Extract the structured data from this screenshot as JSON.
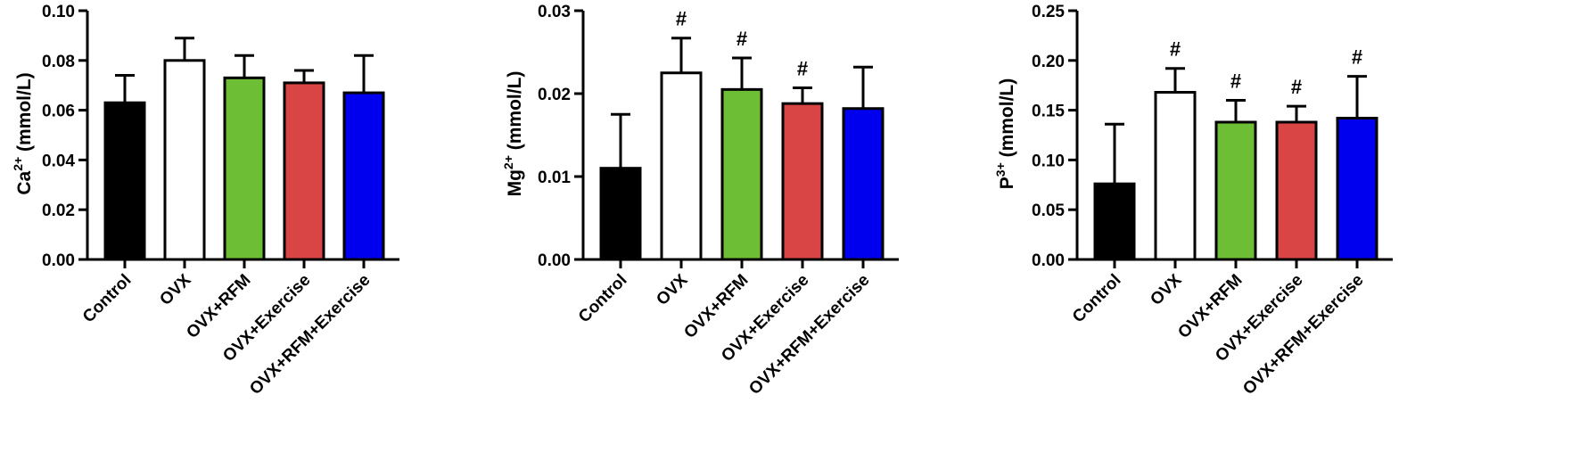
{
  "chart_data": [
    {
      "type": "bar",
      "categories": [
        "Control",
        "OVX",
        "OVX+RFM",
        "OVX+Exercise",
        "OVX+RFM+Exercise"
      ],
      "ylabel_main": "Ca",
      "ylabel_sup": "2+",
      "ylabel_unit": " (mmol/L)",
      "ylim": [
        0,
        0.1
      ],
      "yticks": [
        0.0,
        0.02,
        0.04,
        0.06,
        0.08,
        0.1
      ],
      "ytick_labels": [
        "0.00",
        "0.02",
        "0.04",
        "0.06",
        "0.08",
        "0.10"
      ],
      "values": [
        0.063,
        0.08,
        0.073,
        0.071,
        0.067
      ],
      "errors": [
        0.011,
        0.009,
        0.009,
        0.005,
        0.015
      ],
      "significance": [
        "",
        "",
        "",
        "",
        ""
      ],
      "colors": [
        "#000000",
        "#ffffff",
        "#6dbe35",
        "#d94545",
        "#0000ee"
      ]
    },
    {
      "type": "bar",
      "categories": [
        "Control",
        "OVX",
        "OVX+RFM",
        "OVX+Exercise",
        "OVX+RFM+Exercise"
      ],
      "ylabel_main": "Mg",
      "ylabel_sup": "2+",
      "ylabel_unit": " (mmol/L)",
      "ylim": [
        0,
        0.03
      ],
      "yticks": [
        0.0,
        0.01,
        0.02,
        0.03
      ],
      "ytick_labels": [
        "0.00",
        "0.01",
        "0.02",
        "0.03"
      ],
      "values": [
        0.011,
        0.0225,
        0.0205,
        0.0188,
        0.0182
      ],
      "errors": [
        0.0065,
        0.0042,
        0.0038,
        0.0019,
        0.005
      ],
      "significance": [
        "",
        "#",
        "#",
        "#",
        ""
      ],
      "colors": [
        "#000000",
        "#ffffff",
        "#6dbe35",
        "#d94545",
        "#0000ee"
      ]
    },
    {
      "type": "bar",
      "categories": [
        "Control",
        "OVX",
        "OVX+RFM",
        "OVX+Exercise",
        "OVX+RFM+Exercise"
      ],
      "ylabel_main": "P",
      "ylabel_sup": "3+",
      "ylabel_unit": " (mmol/L)",
      "ylim": [
        0,
        0.25
      ],
      "yticks": [
        0.0,
        0.05,
        0.1,
        0.15,
        0.2,
        0.25
      ],
      "ytick_labels": [
        "0.00",
        "0.05",
        "0.10",
        "0.15",
        "0.20",
        "0.25"
      ],
      "values": [
        0.076,
        0.168,
        0.138,
        0.138,
        0.142
      ],
      "errors": [
        0.06,
        0.024,
        0.022,
        0.016,
        0.042
      ],
      "significance": [
        "",
        "#",
        "#",
        "#",
        "#"
      ],
      "colors": [
        "#000000",
        "#ffffff",
        "#6dbe35",
        "#d94545",
        "#0000ee"
      ]
    }
  ]
}
